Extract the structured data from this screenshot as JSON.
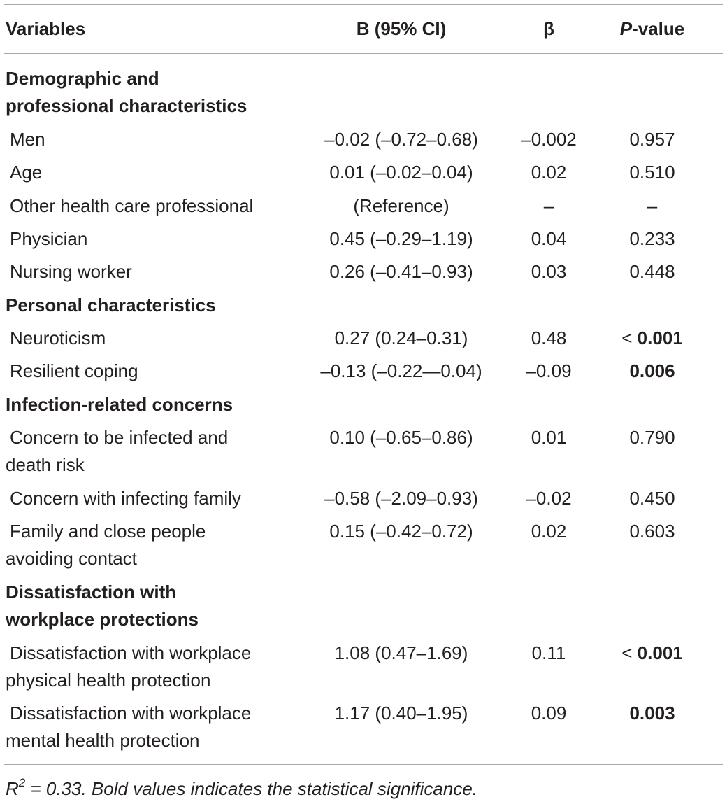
{
  "header": {
    "variables": "Variables",
    "b_ci": "B (95% CI)",
    "beta": "β",
    "p_italic": "P",
    "p_rest": "-value"
  },
  "sections": {
    "demographic_line1": "Demographic and",
    "demographic_line2": "professional characteristics",
    "personal": "Personal characteristics",
    "infection": "Infection-related concerns",
    "dissat_line1": "Dissatisfaction with",
    "dissat_line2": "workplace protections"
  },
  "rows": {
    "men": {
      "label": "Men",
      "b": "–0.02 (–0.72–0.68)",
      "beta": "–0.002",
      "p": "0.957"
    },
    "age": {
      "label": "Age",
      "b": "0.01 (–0.02–0.04)",
      "beta": "0.02",
      "p": "0.510"
    },
    "other": {
      "label": "Other health care professional",
      "b": "(Reference)",
      "beta": "–",
      "p": "–"
    },
    "physician": {
      "label": "Physician",
      "b": "0.45 (–0.29–1.19)",
      "beta": "0.04",
      "p": "0.233"
    },
    "nursing": {
      "label": "Nursing worker",
      "b": "0.26 (–0.41–0.93)",
      "beta": "0.03",
      "p": "0.448"
    },
    "neuroticism": {
      "label": "Neuroticism",
      "b": "0.27 (0.24–0.31)",
      "beta": "0.48",
      "p_prefix": "<",
      "p": "0.001"
    },
    "resilient": {
      "label": "Resilient coping",
      "b": "–0.13 (–0.22—0.04)",
      "beta": "–0.09",
      "p": "0.006"
    },
    "concern_infected": {
      "label_line1": "Concern to be infected and",
      "label_line2": "death risk",
      "b": "0.10 (–0.65–0.86)",
      "beta": "0.01",
      "p": "0.790"
    },
    "concern_family": {
      "label": "Concern with infecting family",
      "b": "–0.58 (–2.09–0.93)",
      "beta": "–0.02",
      "p": "0.450"
    },
    "family_avoid": {
      "label_line1": "Family and close people",
      "label_line2": "avoiding contact",
      "b": "0.15 (–0.42–0.72)",
      "beta": "0.02",
      "p": "0.603"
    },
    "dissat_physical": {
      "label_line1": "Dissatisfaction with workplace",
      "label_line2": "physical health protection",
      "b": "1.08 (0.47–1.69)",
      "beta": "0.11",
      "p_prefix": "<",
      "p": "0.001"
    },
    "dissat_mental": {
      "label_line1": "Dissatisfaction with workplace",
      "label_line2": "mental health protection",
      "b": "1.17 (0.40–1.95)",
      "beta": "0.09",
      "p": "0.003"
    }
  },
  "footnote": {
    "r": "R",
    "sup": "2",
    "rest": " = 0.33. Bold values indicates the statistical significance."
  }
}
